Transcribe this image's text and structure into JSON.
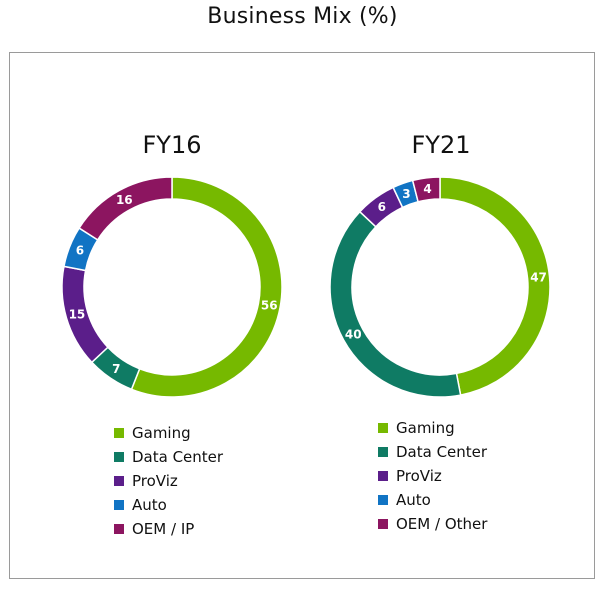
{
  "title": "Business Mix (%)",
  "colors": {
    "gaming": "#76b900",
    "data_center": "#0f7b64",
    "proviz": "#5b1e8a",
    "auto": "#1174c4",
    "oem": "#8c1560"
  },
  "chart_data": [
    {
      "type": "pie",
      "title": "FY16",
      "slices": [
        {
          "label": "Gaming",
          "value": 56,
          "color": "#76b900"
        },
        {
          "label": "Data Center",
          "value": 7,
          "color": "#0f7b64"
        },
        {
          "label": "ProViz",
          "value": 15,
          "color": "#5b1e8a"
        },
        {
          "label": "Auto",
          "value": 6,
          "color": "#1174c4"
        },
        {
          "label": "OEM / IP",
          "value": 16,
          "color": "#8c1560"
        }
      ]
    },
    {
      "type": "pie",
      "title": "FY21",
      "slices": [
        {
          "label": "Gaming",
          "value": 47,
          "color": "#76b900"
        },
        {
          "label": "Data Center",
          "value": 40,
          "color": "#0f7b64"
        },
        {
          "label": "ProViz",
          "value": 6,
          "color": "#5b1e8a"
        },
        {
          "label": "Auto",
          "value": 3,
          "color": "#1174c4"
        },
        {
          "label": "OEM / Other",
          "value": 4,
          "color": "#8c1560"
        }
      ]
    }
  ]
}
